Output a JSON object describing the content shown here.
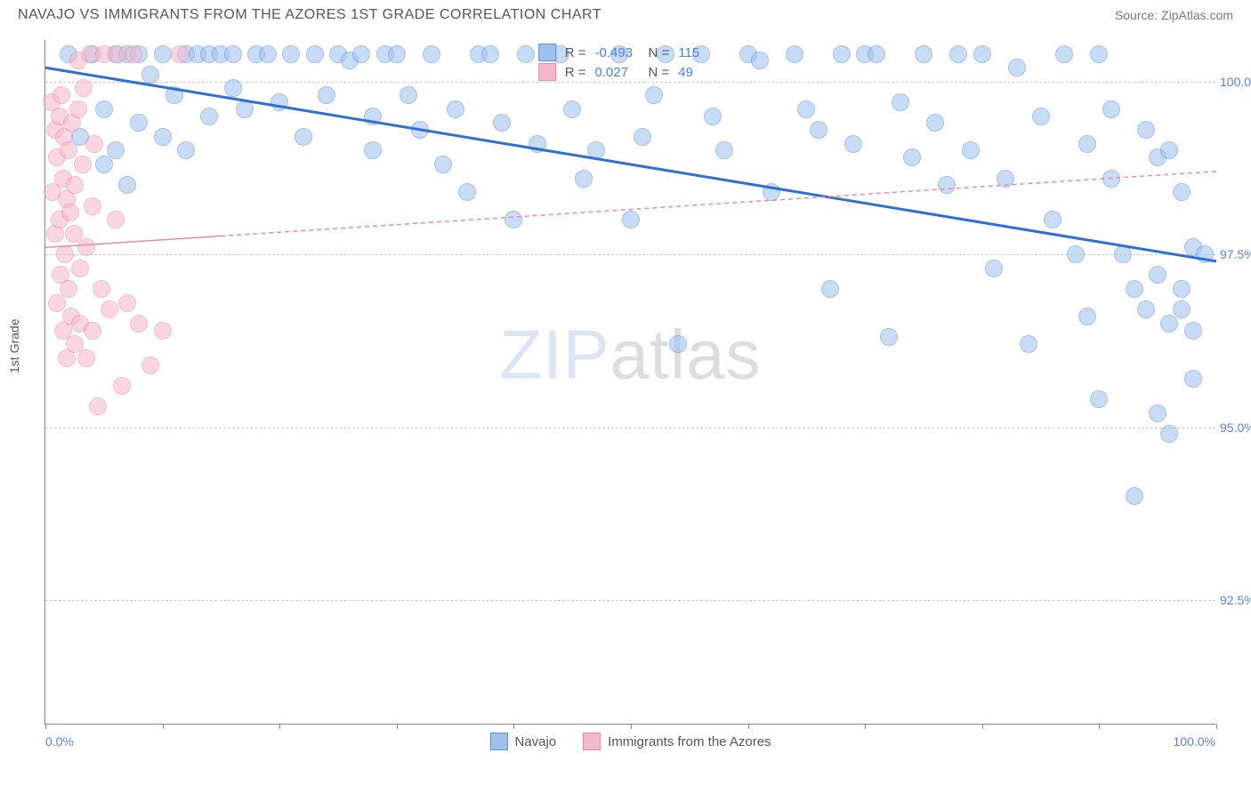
{
  "header": {
    "title": "NAVAJO VS IMMIGRANTS FROM THE AZORES 1ST GRADE CORRELATION CHART",
    "source": "Source: ZipAtlas.com"
  },
  "watermark": {
    "zip": "ZIP",
    "atlas": "atlas"
  },
  "chart": {
    "type": "scatter",
    "ylabel": "1st Grade",
    "xlim": [
      0,
      100
    ],
    "ylim": [
      90.7,
      100.6
    ],
    "x_ticks": [
      0,
      10,
      20,
      30,
      40,
      50,
      60,
      70,
      80,
      90,
      100
    ],
    "y_grid": [
      92.5,
      95.0,
      97.5,
      100.0
    ],
    "y_tick_labels": [
      "92.5%",
      "95.0%",
      "97.5%",
      "100.0%"
    ],
    "x_axis_labels": {
      "left": "0.0%",
      "right": "100.0%"
    },
    "background_color": "#ffffff",
    "grid_color": "#cccccc",
    "axis_color": "#888888",
    "point_radius": 10,
    "point_border_width": 1.2,
    "series": [
      {
        "name": "Navajo",
        "fill_color": "#9ec1ef",
        "stroke_color": "#5b8fd6",
        "fill_opacity": 0.55,
        "R": "-0.493",
        "N": "115",
        "trend": {
          "y_at_x0": 100.2,
          "y_at_x100": 97.4,
          "color": "#2e6fd6",
          "width": 3,
          "dash": "none",
          "solid_until_x": 100
        },
        "points": [
          [
            2,
            100.4
          ],
          [
            3,
            99.2
          ],
          [
            4,
            100.4
          ],
          [
            5,
            98.8
          ],
          [
            5,
            99.6
          ],
          [
            6,
            100.4
          ],
          [
            6,
            99.0
          ],
          [
            7,
            100.4
          ],
          [
            7,
            98.5
          ],
          [
            8,
            99.4
          ],
          [
            8,
            100.4
          ],
          [
            9,
            100.1
          ],
          [
            10,
            99.2
          ],
          [
            10,
            100.4
          ],
          [
            11,
            99.8
          ],
          [
            12,
            100.4
          ],
          [
            12,
            99.0
          ],
          [
            13,
            100.4
          ],
          [
            14,
            99.5
          ],
          [
            14,
            100.4
          ],
          [
            15,
            100.4
          ],
          [
            16,
            99.9
          ],
          [
            16,
            100.4
          ],
          [
            17,
            99.6
          ],
          [
            18,
            100.4
          ],
          [
            19,
            100.4
          ],
          [
            20,
            99.7
          ],
          [
            21,
            100.4
          ],
          [
            22,
            99.2
          ],
          [
            23,
            100.4
          ],
          [
            24,
            99.8
          ],
          [
            25,
            100.4
          ],
          [
            26,
            100.3
          ],
          [
            27,
            100.4
          ],
          [
            28,
            99.5
          ],
          [
            28,
            99.0
          ],
          [
            29,
            100.4
          ],
          [
            30,
            100.4
          ],
          [
            31,
            99.8
          ],
          [
            32,
            99.3
          ],
          [
            33,
            100.4
          ],
          [
            34,
            98.8
          ],
          [
            35,
            99.6
          ],
          [
            36,
            98.4
          ],
          [
            37,
            100.4
          ],
          [
            38,
            100.4
          ],
          [
            39,
            99.4
          ],
          [
            40,
            98.0
          ],
          [
            41,
            100.4
          ],
          [
            42,
            99.1
          ],
          [
            44,
            100.4
          ],
          [
            45,
            99.6
          ],
          [
            46,
            98.6
          ],
          [
            47,
            99.0
          ],
          [
            49,
            100.4
          ],
          [
            50,
            98.0
          ],
          [
            51,
            99.2
          ],
          [
            52,
            99.8
          ],
          [
            53,
            100.4
          ],
          [
            54,
            96.2
          ],
          [
            56,
            100.4
          ],
          [
            57,
            99.5
          ],
          [
            58,
            99.0
          ],
          [
            60,
            100.4
          ],
          [
            61,
            100.3
          ],
          [
            62,
            98.4
          ],
          [
            64,
            100.4
          ],
          [
            65,
            99.6
          ],
          [
            66,
            99.3
          ],
          [
            67,
            97.0
          ],
          [
            68,
            100.4
          ],
          [
            69,
            99.1
          ],
          [
            70,
            100.4
          ],
          [
            71,
            100.4
          ],
          [
            72,
            96.3
          ],
          [
            73,
            99.7
          ],
          [
            74,
            98.9
          ],
          [
            75,
            100.4
          ],
          [
            76,
            99.4
          ],
          [
            77,
            98.5
          ],
          [
            78,
            100.4
          ],
          [
            79,
            99.0
          ],
          [
            80,
            100.4
          ],
          [
            81,
            97.3
          ],
          [
            82,
            98.6
          ],
          [
            83,
            100.2
          ],
          [
            84,
            96.2
          ],
          [
            85,
            99.5
          ],
          [
            86,
            98.0
          ],
          [
            87,
            100.4
          ],
          [
            88,
            97.5
          ],
          [
            89,
            99.1
          ],
          [
            89,
            96.6
          ],
          [
            90,
            100.4
          ],
          [
            90,
            95.4
          ],
          [
            91,
            98.6
          ],
          [
            91,
            99.6
          ],
          [
            92,
            97.5
          ],
          [
            93,
            97.0
          ],
          [
            93,
            94.0
          ],
          [
            94,
            99.3
          ],
          [
            94,
            96.7
          ],
          [
            95,
            98.9
          ],
          [
            95,
            97.2
          ],
          [
            95,
            95.2
          ],
          [
            96,
            99.0
          ],
          [
            96,
            96.5
          ],
          [
            96,
            94.9
          ],
          [
            97,
            98.4
          ],
          [
            97,
            97.0
          ],
          [
            97,
            96.7
          ],
          [
            98,
            97.6
          ],
          [
            98,
            96.4
          ],
          [
            98,
            95.7
          ],
          [
            99,
            97.5
          ]
        ]
      },
      {
        "name": "Immigrants from the Azores",
        "fill_color": "#f6b8c8",
        "stroke_color": "#e68aa4",
        "fill_opacity": 0.55,
        "R": "0.027",
        "N": "49",
        "trend": {
          "y_at_x0": 97.6,
          "y_at_x100": 98.7,
          "color": "#e68aa4",
          "width": 1.5,
          "dash": "5,4",
          "solid_until_x": 15
        },
        "points": [
          [
            0.5,
            99.7
          ],
          [
            0.6,
            98.4
          ],
          [
            0.8,
            99.3
          ],
          [
            0.8,
            97.8
          ],
          [
            1.0,
            98.9
          ],
          [
            1.0,
            96.8
          ],
          [
            1.2,
            99.5
          ],
          [
            1.2,
            98.0
          ],
          [
            1.3,
            97.2
          ],
          [
            1.4,
            99.8
          ],
          [
            1.5,
            98.6
          ],
          [
            1.5,
            96.4
          ],
          [
            1.6,
            99.2
          ],
          [
            1.7,
            97.5
          ],
          [
            1.8,
            98.3
          ],
          [
            1.8,
            96.0
          ],
          [
            2.0,
            99.0
          ],
          [
            2.0,
            97.0
          ],
          [
            2.1,
            98.1
          ],
          [
            2.2,
            96.6
          ],
          [
            2.3,
            99.4
          ],
          [
            2.4,
            97.8
          ],
          [
            2.5,
            96.2
          ],
          [
            2.5,
            98.5
          ],
          [
            2.8,
            99.6
          ],
          [
            2.8,
            100.3
          ],
          [
            3.0,
            97.3
          ],
          [
            3.0,
            96.5
          ],
          [
            3.2,
            98.8
          ],
          [
            3.3,
            99.9
          ],
          [
            3.5,
            96.0
          ],
          [
            3.5,
            97.6
          ],
          [
            3.8,
            100.4
          ],
          [
            4.0,
            96.4
          ],
          [
            4.0,
            98.2
          ],
          [
            4.2,
            99.1
          ],
          [
            4.5,
            95.3
          ],
          [
            4.8,
            97.0
          ],
          [
            5.0,
            100.4
          ],
          [
            5.5,
            96.7
          ],
          [
            6.0,
            98.0
          ],
          [
            6.2,
            100.4
          ],
          [
            6.5,
            95.6
          ],
          [
            7.0,
            96.8
          ],
          [
            7.5,
            100.4
          ],
          [
            8.0,
            96.5
          ],
          [
            9.0,
            95.9
          ],
          [
            10.0,
            96.4
          ],
          [
            11.5,
            100.4
          ]
        ]
      }
    ]
  },
  "legend_stats": {
    "labels": {
      "R": "R =",
      "N": "N ="
    }
  },
  "bottom_legend": {
    "items": [
      "Navajo",
      "Immigrants from the Azores"
    ]
  }
}
